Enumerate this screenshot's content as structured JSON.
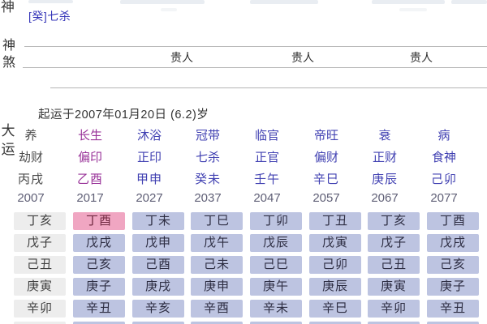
{
  "screen_title": "bazi-four-pillars-chart",
  "colors": {
    "past": "#4a4a4a",
    "current": "#993399",
    "future": "#4141b2",
    "year_text": "#5f5f76",
    "cell_bg": "#bdc4e1",
    "cell_text": "#2d2d42",
    "cell_past_bg": "#ededed",
    "cell_past_text": "#3f3f3f",
    "cell_current_bg": "#f0a6c2",
    "cell_current_text": "#702840",
    "hidden_stem_text": "#3434b8",
    "divider_line": "#b4b4b4",
    "label_text": "#333333"
  },
  "top": {
    "clipped_left_label": "神",
    "hidden_stem_entry": "[癸]七杀",
    "shensha_label": "神\n煞",
    "guiren_labels": [
      "贵人",
      "贵人",
      "贵人"
    ]
  },
  "dayun": {
    "label": "大\n运",
    "start_text": "起运于2007年01月20日 (6.2)岁",
    "columns": [
      {
        "stage": "养",
        "god": "劫财",
        "pillar": "丙戌",
        "year": "2007",
        "state": "past"
      },
      {
        "stage": "长生",
        "god": "偏印",
        "pillar": "乙酉",
        "year": "2017",
        "state": "current"
      },
      {
        "stage": "沐浴",
        "god": "正印",
        "pillar": "甲申",
        "year": "2027",
        "state": "future"
      },
      {
        "stage": "冠带",
        "god": "七杀",
        "pillar": "癸未",
        "year": "2037",
        "state": "future"
      },
      {
        "stage": "临官",
        "god": "正官",
        "pillar": "壬午",
        "year": "2047",
        "state": "future"
      },
      {
        "stage": "帝旺",
        "god": "偏财",
        "pillar": "辛巳",
        "year": "2057",
        "state": "future"
      },
      {
        "stage": "衰",
        "god": "正财",
        "pillar": "庚辰",
        "year": "2067",
        "state": "future"
      },
      {
        "stage": "病",
        "god": "食神",
        "pillar": "己卯",
        "year": "2077",
        "state": "future"
      }
    ]
  },
  "liunian": {
    "current_cell": {
      "row": 0,
      "col": 1
    },
    "rows": [
      [
        "丁亥",
        "丁酉",
        "丁未",
        "丁巳",
        "丁卯",
        "丁丑",
        "丁亥",
        "丁酉"
      ],
      [
        "戊子",
        "戊戌",
        "戊申",
        "戊午",
        "戊辰",
        "戊寅",
        "戊子",
        "戊戌"
      ],
      [
        "己丑",
        "己亥",
        "己酉",
        "己未",
        "己巳",
        "己卯",
        "己丑",
        "己亥"
      ],
      [
        "庚寅",
        "庚子",
        "庚戌",
        "庚申",
        "庚午",
        "庚辰",
        "庚寅",
        "庚子"
      ],
      [
        "辛卯",
        "辛丑",
        "辛亥",
        "辛酉",
        "辛未",
        "辛巳",
        "辛卯",
        "辛丑"
      ],
      [
        "",
        "",
        "",
        "",
        "",
        "",
        "",
        ""
      ]
    ]
  }
}
